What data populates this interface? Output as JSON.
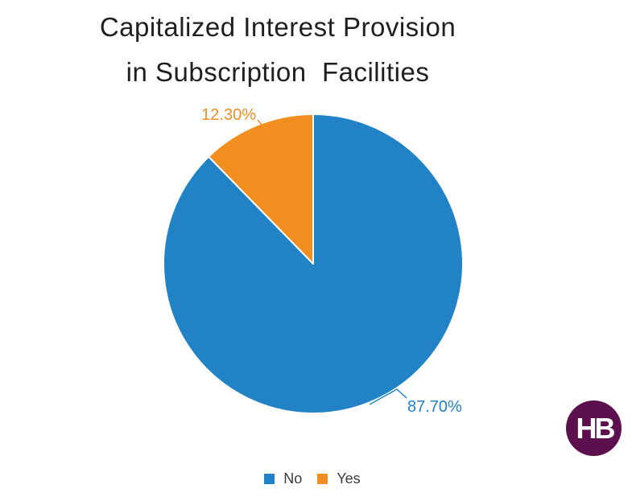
{
  "title": {
    "line1": "Capitalized Interest Provision",
    "line2": "in Subscription  Facilities",
    "full": "Capitalized Interest Provision in Subscription Facilities"
  },
  "chart_data": {
    "type": "pie",
    "title": "Capitalized Interest Provision in Subscription Facilities",
    "categories": [
      "No",
      "Yes"
    ],
    "values": [
      87.7,
      12.3
    ],
    "data_labels": [
      "87.70%",
      "12.30%"
    ],
    "colors": [
      "#2183C5",
      "#F28E20"
    ],
    "start_angle_deg": 0,
    "direction": "clockwise",
    "legend_position": "bottom"
  },
  "legend": {
    "items": [
      {
        "label": "No",
        "color": "#2183C5"
      },
      {
        "label": "Yes",
        "color": "#F28E20"
      }
    ]
  },
  "logo": {
    "text": "HB",
    "bg_color": "#5C104D",
    "text_color": "#FFFFFF"
  }
}
